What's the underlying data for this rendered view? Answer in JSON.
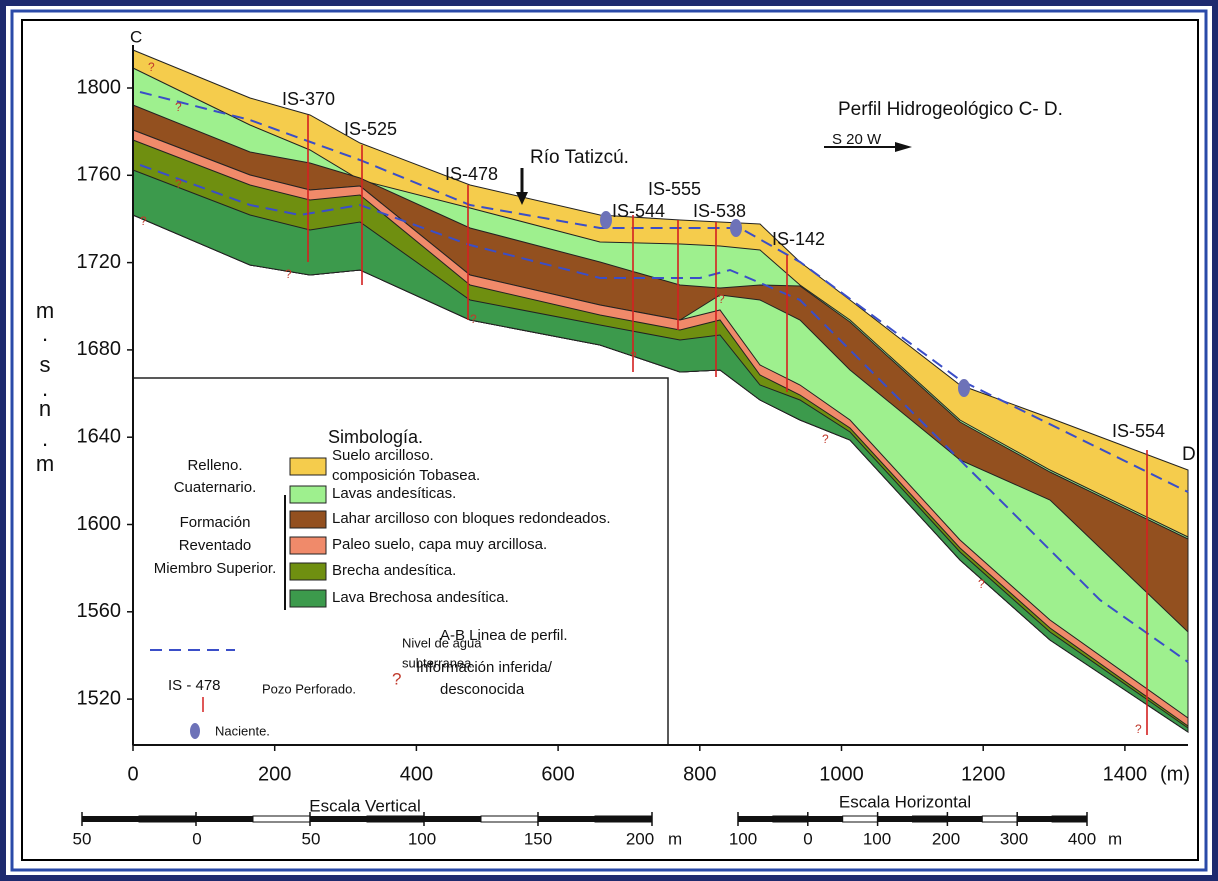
{
  "header": {
    "title": "Perfil Hidrogeológico C- D.",
    "direction": "S 20 W",
    "river": "Río Tatizcú.",
    "corner_left": "C",
    "corner_right": "D"
  },
  "axes": {
    "x_unit": "(m)",
    "xticks": [
      0,
      200,
      400,
      600,
      800,
      1000,
      1200,
      1400
    ],
    "yticks": [
      1800,
      1760,
      1720,
      1680,
      1640,
      1600,
      1560,
      1520
    ],
    "y_label_parts": [
      "m",
      ".",
      "s",
      ".",
      "n",
      ".",
      "m"
    ]
  },
  "wells": [
    {
      "label": "IS-370"
    },
    {
      "label": "IS-525"
    },
    {
      "label": "IS-478"
    },
    {
      "label": "IS-544"
    },
    {
      "label": "IS-555"
    },
    {
      "label": "IS-538"
    },
    {
      "label": "IS-142"
    },
    {
      "label": "IS-554"
    }
  ],
  "question_marks": [
    "?",
    "?",
    "?",
    "?",
    "?",
    "?",
    "?",
    "?",
    "?",
    "?",
    "?"
  ],
  "legend": {
    "title": "Simbología.",
    "group_1": [
      "Relleno.",
      "Cuaternario."
    ],
    "group_2": [
      "Formación",
      "Reventado",
      "Miembro Superior."
    ],
    "items": [
      {
        "label": "Suelo arcilloso.",
        "label_2": "composición Tobasea.",
        "color": "#f5cc4c"
      },
      {
        "label": "Lavas andesíticas.",
        "color": "#9ef08e"
      },
      {
        "label": "Lahar arcilloso con bloques redondeados.",
        "color": "#93501f"
      },
      {
        "label": "Paleo suelo, capa muy arcillosa.",
        "color": "#f08a6a"
      },
      {
        "label": "Brecha andesítica.",
        "color": "#6f8f10"
      },
      {
        "label": "Lava Brechosa andesítica.",
        "color": "#3c9a4c"
      }
    ],
    "water": [
      "Nivel de agua",
      "subterranea."
    ],
    "well_sample": "IS - 478",
    "well_text": "Pozo Perforado.",
    "profile_line": "A-B Linea de perfil.",
    "inferred_symbol": "?",
    "inferred": [
      "Información inferida/",
      "desconocida"
    ],
    "spring": "Naciente."
  },
  "scales": {
    "vertical": {
      "title": "Escala Vertical",
      "labels": [
        50,
        0,
        50,
        100,
        150,
        200
      ],
      "unit": "m"
    },
    "horizontal": {
      "title": "Escala Horizontal",
      "labels": [
        100,
        0,
        100,
        200,
        300,
        400
      ],
      "unit": "m"
    }
  }
}
